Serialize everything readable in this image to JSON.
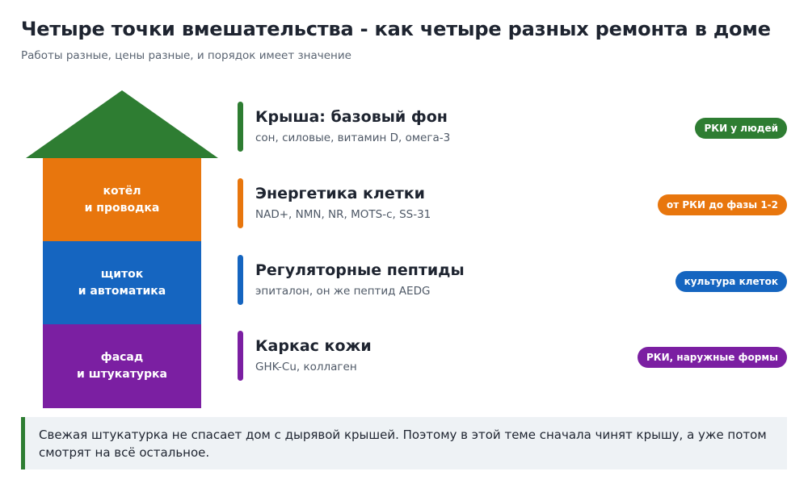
{
  "title": "Четыре точки вмешательства - как четыре разных ремонта в доме",
  "subtitle": "Работы разные, цены разные, и порядок имеет значение",
  "house": {
    "roof_color": "#2e7d32",
    "floors": [
      {
        "label": "котёл\nи проводка",
        "color": "#e8760d"
      },
      {
        "label": "щиток\nи автоматика",
        "color": "#1565c0"
      },
      {
        "label": "фасад\nи штукатурка",
        "color": "#7b1fa2"
      }
    ]
  },
  "rows": [
    {
      "title": "Крыша: базовый фон",
      "desc": "сон, силовые, витамин D, омега-3",
      "badge": "РКИ у людей",
      "color": "#2e7d32"
    },
    {
      "title": "Энергетика клетки",
      "desc": "NAD+, NMN, NR, MOTS-c, SS-31",
      "badge": "от РКИ до фазы 1-2",
      "color": "#e8760d"
    },
    {
      "title": "Регуляторные пептиды",
      "desc": "эпиталон, он же пептид AEDG",
      "badge": "культура клеток",
      "color": "#1565c0"
    },
    {
      "title": "Каркас кожи",
      "desc": "GHK-Cu, коллаген",
      "badge": "РКИ, наружные формы",
      "color": "#7b1fa2"
    }
  ],
  "note": {
    "text": "Свежая штукатурка не спасает дом с дырявой крышей. Поэтому в этой теме сначала чинят крышу, а уже потом смотрят на всё остальное.",
    "accent_color": "#2e7d32"
  }
}
